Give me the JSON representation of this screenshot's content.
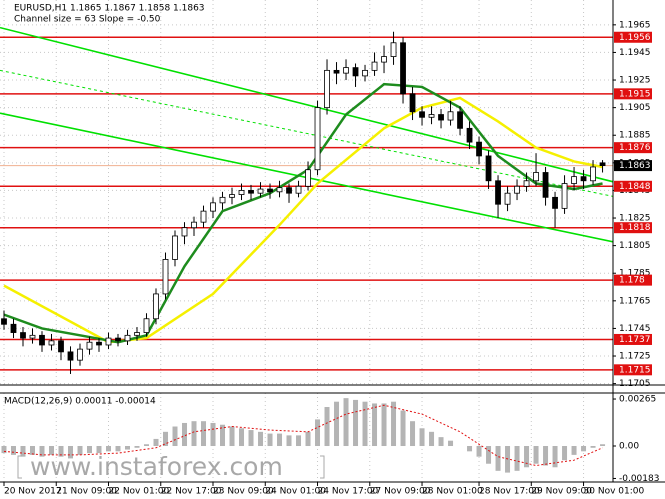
{
  "chart_data": [
    {
      "type": "candlestick",
      "title": "EURUSD,H1  1.1865 1.1867 1.1858 1.1863",
      "subtitle": "Channel size = 63 Slope = -0.50",
      "xlim": [
        -0.42,
        64.1
      ],
      "xticks": [
        {
          "value": 0,
          "label": "20 Nov 2017"
        },
        {
          "value": 5.5,
          "label": "21 Nov 09:00"
        },
        {
          "value": 11,
          "label": "22 Nov 01:00"
        },
        {
          "value": 16.5,
          "label": "22 Nov 17:00"
        },
        {
          "value": 22,
          "label": "23 Nov 09:00"
        },
        {
          "value": 27.5,
          "label": "24 Nov 01:00"
        },
        {
          "value": 33,
          "label": "24 Nov 17:00"
        },
        {
          "value": 38.5,
          "label": "27 Nov 09:00"
        },
        {
          "value": 44,
          "label": "28 Nov 01:00"
        },
        {
          "value": 50,
          "label": "28 Nov 17:00"
        },
        {
          "value": 55.5,
          "label": "29 Nov 09:00"
        },
        {
          "value": 61,
          "label": "30 Nov 01:00"
        }
      ],
      "ylim": [
        1.1704,
        1.1983
      ],
      "yticks": [
        1.1965,
        1.1945,
        1.1925,
        1.1905,
        1.1885,
        1.1865,
        1.1845,
        1.1825,
        1.1805,
        1.1785,
        1.1765,
        1.1745,
        1.1725,
        1.1705
      ],
      "grid": true,
      "up_color": "#ffffff",
      "down_color": "#000000",
      "ohlc": [
        [
          1.1752,
          1.1758,
          1.1744,
          1.1748
        ],
        [
          1.1748,
          1.1752,
          1.1738,
          1.1742
        ],
        [
          1.1742,
          1.1746,
          1.1732,
          1.1738
        ],
        [
          1.1738,
          1.1745,
          1.1734,
          1.174
        ],
        [
          1.174,
          1.1743,
          1.1728,
          1.1733
        ],
        [
          1.1733,
          1.1741,
          1.1729,
          1.1736
        ],
        [
          1.1736,
          1.1739,
          1.1722,
          1.1728
        ],
        [
          1.1728,
          1.1732,
          1.1712,
          1.1722
        ],
        [
          1.1722,
          1.1734,
          1.1718,
          1.173
        ],
        [
          1.173,
          1.1739,
          1.1726,
          1.1735
        ],
        [
          1.1735,
          1.1738,
          1.1728,
          1.1733
        ],
        [
          1.1733,
          1.1742,
          1.173,
          1.1738
        ],
        [
          1.1738,
          1.1741,
          1.1732,
          1.1736
        ],
        [
          1.1736,
          1.1744,
          1.1733,
          1.174
        ],
        [
          1.174,
          1.1746,
          1.1736,
          1.1742
        ],
        [
          1.1742,
          1.1756,
          1.1739,
          1.1752
        ],
        [
          1.1752,
          1.1774,
          1.1748,
          1.177
        ],
        [
          1.177,
          1.18,
          1.1766,
          1.1795
        ],
        [
          1.1795,
          1.1816,
          1.179,
          1.1812
        ],
        [
          1.1812,
          1.1822,
          1.1806,
          1.1818
        ],
        [
          1.1818,
          1.1826,
          1.1812,
          1.1822
        ],
        [
          1.1822,
          1.1834,
          1.1818,
          1.183
        ],
        [
          1.183,
          1.184,
          1.1825,
          1.1836
        ],
        [
          1.1836,
          1.1844,
          1.1831,
          1.184
        ],
        [
          1.184,
          1.1847,
          1.1835,
          1.1842
        ],
        [
          1.1842,
          1.185,
          1.1838,
          1.1845
        ],
        [
          1.1845,
          1.1849,
          1.1838,
          1.1843
        ],
        [
          1.1843,
          1.1851,
          1.184,
          1.1846
        ],
        [
          1.1846,
          1.185,
          1.1839,
          1.1844
        ],
        [
          1.1844,
          1.1852,
          1.184,
          1.1847
        ],
        [
          1.1847,
          1.185,
          1.1836,
          1.1843
        ],
        [
          1.1843,
          1.1852,
          1.184,
          1.1848
        ],
        [
          1.1848,
          1.1866,
          1.1845,
          1.186
        ],
        [
          1.186,
          1.191,
          1.1856,
          1.1905
        ],
        [
          1.1905,
          1.194,
          1.19,
          1.1932
        ],
        [
          1.1932,
          1.1938,
          1.1922,
          1.193
        ],
        [
          1.193,
          1.194,
          1.1925,
          1.1934
        ],
        [
          1.1934,
          1.1937,
          1.192,
          1.1928
        ],
        [
          1.1928,
          1.1936,
          1.1924,
          1.1932
        ],
        [
          1.1932,
          1.1945,
          1.1928,
          1.1938
        ],
        [
          1.1938,
          1.195,
          1.193,
          1.1942
        ],
        [
          1.1942,
          1.196,
          1.1936,
          1.1952
        ],
        [
          1.1952,
          1.1956,
          1.1908,
          1.1915
        ],
        [
          1.1915,
          1.192,
          1.1896,
          1.1902
        ],
        [
          1.1902,
          1.1906,
          1.1892,
          1.1898
        ],
        [
          1.1898,
          1.1906,
          1.1893,
          1.19
        ],
        [
          1.19,
          1.1904,
          1.189,
          1.1896
        ],
        [
          1.1896,
          1.191,
          1.1892,
          1.1902
        ],
        [
          1.1902,
          1.1906,
          1.1885,
          1.189
        ],
        [
          1.189,
          1.1895,
          1.1875,
          1.188
        ],
        [
          1.188,
          1.1884,
          1.1864,
          1.187
        ],
        [
          1.187,
          1.1874,
          1.1846,
          1.1852
        ],
        [
          1.1852,
          1.1856,
          1.1825,
          1.1835
        ],
        [
          1.1835,
          1.1848,
          1.183,
          1.1843
        ],
        [
          1.1843,
          1.1853,
          1.1838,
          1.1848
        ],
        [
          1.1848,
          1.1858,
          1.1844,
          1.1852
        ],
        [
          1.1852,
          1.1872,
          1.1848,
          1.1858
        ],
        [
          1.1858,
          1.1862,
          1.1834,
          1.184
        ],
        [
          1.184,
          1.1844,
          1.1818,
          1.1832
        ],
        [
          1.1832,
          1.1856,
          1.1828,
          1.185
        ],
        [
          1.185,
          1.1862,
          1.1845,
          1.1855
        ],
        [
          1.1855,
          1.186,
          1.1846,
          1.1852
        ],
        [
          1.1852,
          1.1867,
          1.1849,
          1.1862
        ],
        [
          1.1865,
          1.1867,
          1.1858,
          1.1863
        ]
      ],
      "series": [
        {
          "color": "#f5f000",
          "x": [
            0,
            11,
            15,
            22,
            29,
            33,
            40,
            44,
            48,
            52,
            56,
            60,
            63
          ],
          "values": [
            1.1776,
            1.1735,
            1.1738,
            1.177,
            1.182,
            1.185,
            1.189,
            1.1905,
            1.1912,
            1.1895,
            1.1876,
            1.1866,
            1.1862
          ]
        },
        {
          "color": "#1e8c1e",
          "x": [
            0,
            4,
            8,
            12,
            15,
            19,
            23,
            28,
            32,
            36,
            40,
            44,
            48,
            52,
            56,
            60,
            63
          ],
          "values": [
            1.1755,
            1.1745,
            1.174,
            1.1735,
            1.174,
            1.179,
            1.183,
            1.1843,
            1.186,
            1.19,
            1.1922,
            1.192,
            1.1905,
            1.187,
            1.185,
            1.1846,
            1.185
          ]
        }
      ],
      "lines": [
        {
          "color": "#00e000",
          "dashed": false,
          "x": [
            -0.42,
            66
          ],
          "y": [
            1.1963,
            1.1848
          ]
        },
        {
          "color": "#00e000",
          "dashed": true,
          "x": [
            -0.42,
            66
          ],
          "y": [
            1.1932,
            1.1838
          ]
        },
        {
          "color": "#00e000",
          "dashed": false,
          "x": [
            -0.42,
            66
          ],
          "y": [
            1.1901,
            1.1805
          ]
        }
      ],
      "levels": [
        {
          "value": 1.1956,
          "color": "#e01010"
        },
        {
          "value": 1.1915,
          "color": "#e01010"
        },
        {
          "value": 1.1876,
          "color": "#e01010"
        },
        {
          "value": 1.1848,
          "color": "#e01010"
        },
        {
          "value": 1.1818,
          "color": "#e01010"
        },
        {
          "value": 1.178,
          "color": "#e01010"
        },
        {
          "value": 1.1737,
          "color": "#e01010"
        },
        {
          "value": 1.1715,
          "color": "#e01010"
        }
      ],
      "last": 1.1863
    },
    {
      "type": "macd",
      "title": "MACD(12,26,9) 0.00011 -0.00014",
      "ylim": [
        -0.00203,
        0.00299
      ],
      "yticks": [
        0.00265,
        {
          "value": 0,
          "label": "0.00"
        },
        -0.00183
      ],
      "color": "#b4b4b4",
      "histogram": [
        -0.0004,
        -0.0005,
        -0.0006,
        -0.0005,
        -0.0006,
        -0.0005,
        -0.0006,
        -0.0007,
        -0.0005,
        -0.0004,
        -0.0004,
        -0.0003,
        -0.0003,
        -0.0002,
        -0.0001,
        0.0001,
        0.0004,
        0.0008,
        0.0011,
        0.0013,
        0.0014,
        0.0014,
        0.0013,
        0.0012,
        0.0011,
        0.001,
        0.0009,
        0.0008,
        0.0007,
        0.0007,
        0.0006,
        0.0006,
        0.0008,
        0.0015,
        0.0022,
        0.0025,
        0.0027,
        0.0026,
        0.0025,
        0.0024,
        0.0024,
        0.0025,
        0.002,
        0.0014,
        0.001,
        0.0008,
        0.0005,
        0.0003,
        0.0,
        -0.0003,
        -0.0006,
        -0.001,
        -0.0014,
        -0.0015,
        -0.0014,
        -0.0012,
        -0.001,
        -0.0011,
        -0.0012,
        -0.0008,
        -0.0005,
        -0.0003,
        -0.0001,
        0.0001
      ],
      "signal": {
        "color": "#e01010",
        "x": [
          0,
          4,
          8,
          12,
          16,
          20,
          24,
          28,
          32,
          36,
          40,
          44,
          48,
          52,
          56,
          60,
          63
        ],
        "values": [
          -0.0003,
          -0.0005,
          -0.0005,
          -0.0004,
          -0.0001,
          0.0008,
          0.0011,
          0.0009,
          0.0008,
          0.0018,
          0.0023,
          0.0018,
          0.0008,
          -0.0006,
          -0.0011,
          -0.0008,
          -0.0001
        ]
      }
    }
  ],
  "watermark": "www.instaforex.com"
}
